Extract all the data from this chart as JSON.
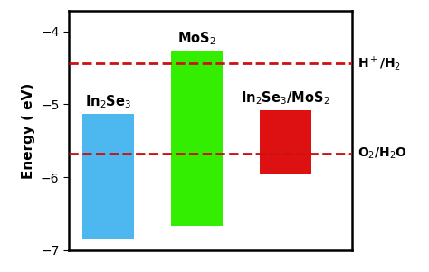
{
  "bars": [
    {
      "label": "In$_2$Se$_3$",
      "top": -5.13,
      "bottom": -6.85,
      "color": "#4db8f0",
      "x": 1
    },
    {
      "label": "MoS$_2$",
      "top": -4.27,
      "bottom": -6.67,
      "color": "#33ee00",
      "x": 2
    },
    {
      "label": "In$_2$Se$_3$/MoS$_2$",
      "top": -5.08,
      "bottom": -5.95,
      "color": "#dd1111",
      "x": 3
    }
  ],
  "hlines": [
    {
      "y": -4.44,
      "label": "H$^+$/H$_2$"
    },
    {
      "y": -5.67,
      "label": "O$_2$/H$_2$O"
    }
  ],
  "hline_color": "#cc1111",
  "hline_style": "--",
  "hline_lw": 2.0,
  "ylabel": "Energy ( eV)",
  "ylim": [
    -7.0,
    -3.72
  ],
  "yticks": [
    -7,
    -6,
    -5,
    -4
  ],
  "xlim": [
    0.55,
    3.75
  ],
  "bar_width": 0.58,
  "figsize": [
    4.74,
    3.01
  ],
  "dpi": 100,
  "spine_lw": 1.8,
  "label_fontsize": 10.5,
  "tick_fontsize": 10,
  "ylabel_fontsize": 11,
  "hline_label_fontsize": 10
}
